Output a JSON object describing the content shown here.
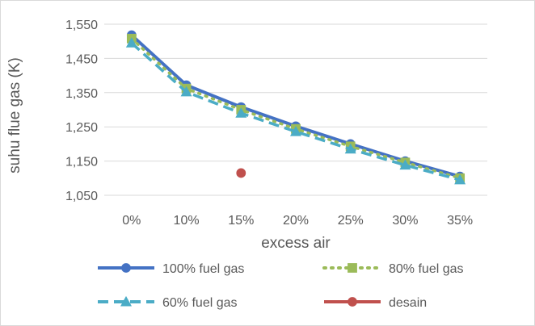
{
  "chart_data": {
    "type": "line",
    "title": "",
    "xlabel": "excess air",
    "ylabel": "suhu flue gas (K)",
    "categories": [
      "0%",
      "10%",
      "15%",
      "20%",
      "25%",
      "30%",
      "35%"
    ],
    "y_tick_labels": [
      "1,550",
      "1,450",
      "1,350",
      "1,250",
      "1,150",
      "1,050"
    ],
    "ylim": [
      1050,
      1550
    ],
    "grid": "horizontal",
    "legend_position": "bottom",
    "series": [
      {
        "name": "100% fuel gas",
        "color": "#4472C4",
        "marker": "circle",
        "line_style": "solid",
        "values": [
          1518,
          1372,
          1308,
          1252,
          1200,
          1150,
          1105
        ]
      },
      {
        "name": "80% fuel gas",
        "color": "#9BBB59",
        "marker": "square",
        "line_style": "dotted",
        "values": [
          1508,
          1362,
          1300,
          1244,
          1193,
          1146,
          1100
        ]
      },
      {
        "name": "60% fuel gas",
        "color": "#4BACC6",
        "marker": "triangle",
        "line_style": "dashed",
        "values": [
          1495,
          1352,
          1290,
          1236,
          1185,
          1138,
          1095
        ]
      },
      {
        "name": "desain",
        "color": "#C0504D",
        "marker": "circle",
        "line_style": "none",
        "values": [
          null,
          null,
          1115,
          null,
          null,
          null,
          null
        ]
      }
    ]
  }
}
